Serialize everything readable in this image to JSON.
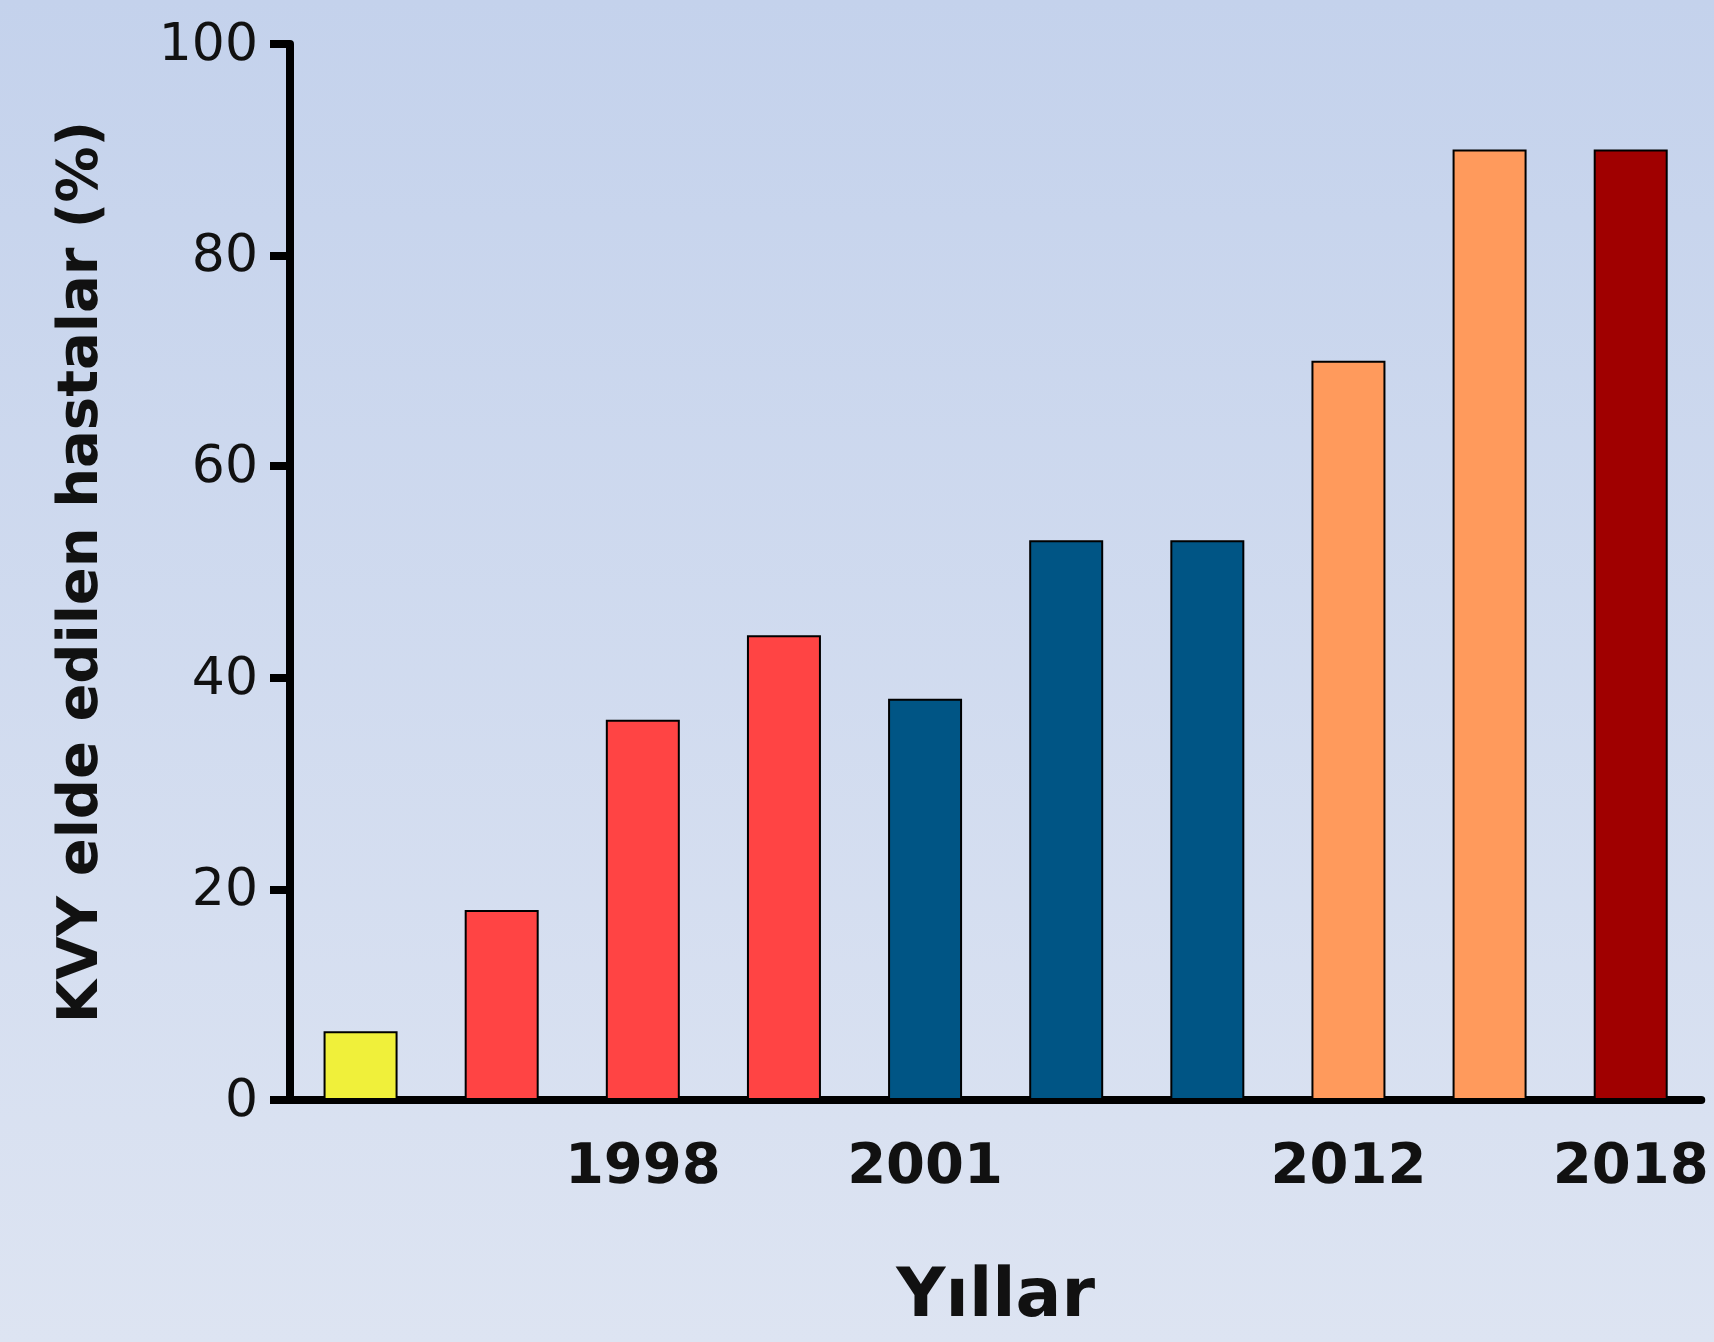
{
  "chart_data": {
    "type": "bar",
    "xlabel": "Yıllar",
    "ylabel": "KVY elde edilen hastalar (%)",
    "categories": [
      null,
      null,
      "1998",
      null,
      "2001",
      null,
      null,
      "2012",
      null,
      "2018"
    ],
    "values": [
      6.5,
      18,
      36,
      44,
      38,
      53,
      53,
      70,
      90,
      90
    ],
    "colors": [
      "#f0f03a",
      "#ff4444",
      "#ff4444",
      "#ff4444",
      "#005585",
      "#005585",
      "#005585",
      "#ff9a5c",
      "#ff9a5c",
      "#a00000"
    ],
    "ylim": [
      0,
      100
    ],
    "yticks": [
      0,
      20,
      40,
      60,
      80,
      100
    ]
  }
}
